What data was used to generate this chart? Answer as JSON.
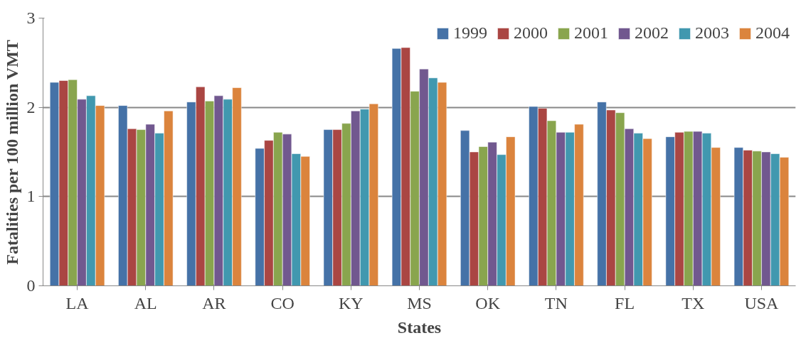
{
  "chart_data": {
    "type": "bar",
    "xlabel": "States",
    "ylabel": "Fatalities per 100 million VMT",
    "categories": [
      "LA",
      "AL",
      "AR",
      "CO",
      "KY",
      "MS",
      "OK",
      "TN",
      "FL",
      "TX",
      "USA"
    ],
    "series": [
      {
        "name": "1999",
        "color": "#4572a7",
        "values": [
          2.28,
          2.02,
          2.06,
          1.54,
          1.75,
          2.66,
          1.74,
          2.01,
          2.06,
          1.67,
          1.55
        ]
      },
      {
        "name": "2000",
        "color": "#aa4643",
        "values": [
          2.3,
          1.76,
          2.23,
          1.63,
          1.75,
          2.67,
          1.5,
          1.99,
          1.97,
          1.72,
          1.52
        ]
      },
      {
        "name": "2001",
        "color": "#89a54e",
        "values": [
          2.31,
          1.75,
          2.07,
          1.72,
          1.82,
          2.18,
          1.56,
          1.85,
          1.94,
          1.73,
          1.51
        ]
      },
      {
        "name": "2002",
        "color": "#71588f",
        "values": [
          2.09,
          1.81,
          2.13,
          1.7,
          1.96,
          2.43,
          1.61,
          1.72,
          1.76,
          1.73,
          1.5
        ]
      },
      {
        "name": "2003",
        "color": "#4198af",
        "values": [
          2.13,
          1.71,
          2.09,
          1.48,
          1.98,
          2.33,
          1.47,
          1.72,
          1.71,
          1.71,
          1.48
        ]
      },
      {
        "name": "2004",
        "color": "#db843d",
        "values": [
          2.02,
          1.96,
          2.22,
          1.45,
          2.04,
          2.28,
          1.67,
          1.81,
          1.65,
          1.55,
          1.44
        ]
      }
    ],
    "ylim": [
      0,
      3
    ],
    "yticks": [
      0,
      1,
      2,
      3
    ],
    "grid": "y",
    "legend": "top right"
  }
}
